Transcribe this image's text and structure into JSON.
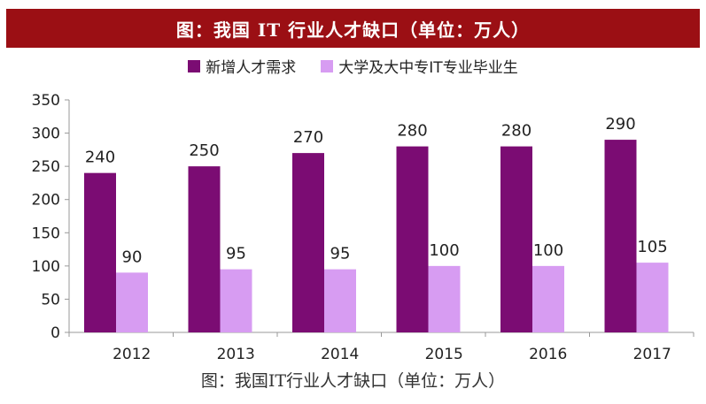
{
  "header": {
    "title": "图：我国 IT 行业人才缺口（单位：万人）"
  },
  "caption": "图：我国IT行业人才缺口（单位：万人）",
  "colors": {
    "title_bg": "#9b0f14",
    "series1": "#7b0c73",
    "series2": "#d79cf2"
  },
  "chart_data": {
    "type": "bar",
    "categories": [
      "2012",
      "2013",
      "2014",
      "2015",
      "2016",
      "2017"
    ],
    "series": [
      {
        "name": "新增人才需求",
        "values": [
          240,
          250,
          270,
          280,
          280,
          290
        ]
      },
      {
        "name": "大学及大中专IT专业毕业生",
        "values": [
          90,
          95,
          95,
          100,
          100,
          105
        ]
      }
    ],
    "ylim": [
      0,
      350
    ],
    "yticks": [
      0,
      50,
      100,
      150,
      200,
      250,
      300,
      350
    ],
    "grid": false,
    "legend_position": "top-center",
    "data_labels": true
  }
}
